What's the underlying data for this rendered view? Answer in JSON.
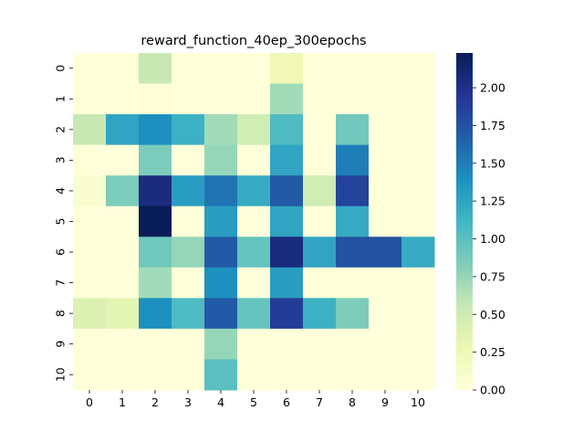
{
  "chart_data": {
    "type": "heatmap",
    "title": "reward_function_40ep_300epochs",
    "xlabel": "",
    "ylabel": "",
    "x_categories": [
      "0",
      "1",
      "2",
      "3",
      "4",
      "5",
      "6",
      "7",
      "8",
      "9",
      "10"
    ],
    "y_categories": [
      "0",
      "1",
      "2",
      "3",
      "4",
      "5",
      "6",
      "7",
      "8",
      "9",
      "10"
    ],
    "values": [
      [
        0.0,
        0.0,
        0.55,
        0.0,
        0.0,
        0.0,
        0.25,
        0.0,
        0.0,
        0.0,
        0.0
      ],
      [
        0.0,
        0.0,
        0.03,
        0.0,
        0.0,
        0.0,
        0.7,
        0.0,
        0.0,
        0.0,
        0.0
      ],
      [
        0.55,
        1.25,
        1.4,
        1.15,
        0.7,
        0.5,
        1.05,
        0.0,
        0.9,
        0.0,
        0.0
      ],
      [
        0.0,
        0.0,
        0.85,
        0.0,
        0.75,
        0.0,
        1.25,
        0.0,
        1.5,
        0.0,
        0.0
      ],
      [
        0.07,
        0.85,
        2.05,
        1.3,
        1.55,
        1.2,
        1.7,
        0.5,
        1.85,
        0.0,
        0.0
      ],
      [
        0.0,
        0.0,
        2.23,
        0.0,
        1.3,
        0.0,
        1.25,
        0.0,
        1.2,
        0.0,
        0.0
      ],
      [
        0.0,
        0.0,
        0.9,
        0.75,
        1.7,
        0.95,
        2.05,
        1.25,
        1.75,
        1.75,
        1.2
      ],
      [
        0.0,
        0.0,
        0.7,
        0.0,
        1.4,
        0.0,
        1.3,
        0.0,
        0.0,
        0.0,
        0.0
      ],
      [
        0.4,
        0.35,
        1.4,
        1.05,
        1.7,
        0.95,
        1.9,
        1.15,
        0.85,
        0.0,
        0.0
      ],
      [
        0.0,
        0.0,
        0.0,
        0.0,
        0.75,
        0.0,
        0.0,
        0.0,
        0.0,
        0.0,
        0.0
      ],
      [
        0.0,
        0.0,
        0.0,
        0.0,
        1.0,
        0.0,
        0.0,
        0.0,
        0.0,
        0.0,
        0.0
      ]
    ],
    "colormap": "YlGnBu",
    "vmin": 0,
    "vmax": 2.23,
    "colorbar_ticks": [
      "0.00",
      "0.25",
      "0.50",
      "0.75",
      "1.00",
      "1.25",
      "1.50",
      "1.75",
      "2.00"
    ],
    "colorbar_tick_values": [
      0,
      0.25,
      0.5,
      0.75,
      1.0,
      1.25,
      1.5,
      1.75,
      2.0
    ],
    "grid": false,
    "colorbar_placement": "right"
  }
}
